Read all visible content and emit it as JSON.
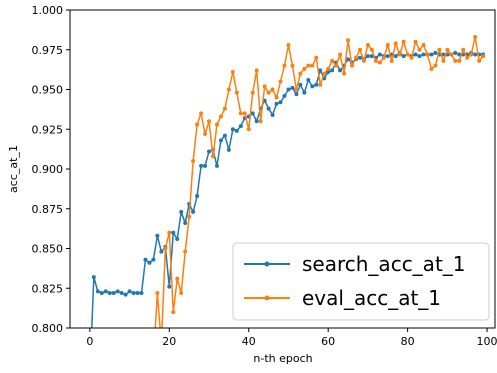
{
  "chart_data": {
    "type": "line",
    "xlabel": "n-th epoch",
    "ylabel": "acc_at_1",
    "xlim": [
      -5,
      102
    ],
    "ylim": [
      0.8,
      1.0
    ],
    "xticks": [
      "0",
      "20",
      "40",
      "60",
      "80",
      "100"
    ],
    "yticks": [
      "0.800",
      "0.825",
      "0.850",
      "0.875",
      "0.900",
      "0.925",
      "0.950",
      "0.975",
      "1.000"
    ],
    "grid": false,
    "legend_position": "lower-right",
    "series": [
      {
        "name": "search_acc_at_1",
        "color": "#1f77b4",
        "x": [
          0,
          1,
          2,
          3,
          4,
          5,
          6,
          7,
          8,
          9,
          10,
          11,
          12,
          13,
          14,
          15,
          16,
          17,
          18,
          19,
          20,
          21,
          22,
          23,
          24,
          25,
          26,
          27,
          28,
          29,
          30,
          31,
          32,
          33,
          34,
          35,
          36,
          37,
          38,
          39,
          40,
          41,
          42,
          43,
          44,
          45,
          46,
          47,
          48,
          49,
          50,
          51,
          52,
          53,
          54,
          55,
          56,
          57,
          58,
          59,
          60,
          61,
          62,
          63,
          64,
          65,
          66,
          67,
          68,
          69,
          70,
          71,
          72,
          73,
          74,
          75,
          76,
          77,
          78,
          79,
          80,
          81,
          82,
          83,
          84,
          85,
          86,
          87,
          88,
          89,
          90,
          91,
          92,
          93,
          94,
          95,
          96,
          97,
          98,
          99
        ],
        "y": [
          0.77,
          0.832,
          0.823,
          0.822,
          0.823,
          0.822,
          0.822,
          0.823,
          0.822,
          0.821,
          0.823,
          0.822,
          0.822,
          0.822,
          0.843,
          0.841,
          0.843,
          0.858,
          0.848,
          0.851,
          0.826,
          0.86,
          0.856,
          0.873,
          0.866,
          0.878,
          0.873,
          0.883,
          0.902,
          0.902,
          0.911,
          0.912,
          0.902,
          0.918,
          0.921,
          0.912,
          0.925,
          0.924,
          0.927,
          0.932,
          0.933,
          0.935,
          0.93,
          0.938,
          0.943,
          0.938,
          0.934,
          0.941,
          0.942,
          0.946,
          0.95,
          0.951,
          0.947,
          0.953,
          0.948,
          0.956,
          0.952,
          0.953,
          0.962,
          0.957,
          0.961,
          0.962,
          0.967,
          0.962,
          0.965,
          0.969,
          0.967,
          0.969,
          0.97,
          0.969,
          0.971,
          0.971,
          0.97,
          0.972,
          0.971,
          0.971,
          0.972,
          0.971,
          0.973,
          0.971,
          0.972,
          0.971,
          0.972,
          0.971,
          0.972,
          0.972,
          0.972,
          0.973,
          0.972,
          0.972,
          0.972,
          0.972,
          0.973,
          0.972,
          0.972,
          0.972,
          0.973,
          0.972,
          0.972,
          0.972
        ]
      },
      {
        "name": "eval_acc_at_1",
        "color": "#ff7f0e",
        "x": [
          16,
          17,
          18,
          19,
          20,
          21,
          22,
          23,
          24,
          25,
          26,
          27,
          28,
          29,
          30,
          31,
          32,
          33,
          34,
          35,
          36,
          37,
          38,
          39,
          40,
          41,
          42,
          43,
          44,
          45,
          46,
          47,
          48,
          49,
          50,
          51,
          52,
          53,
          54,
          55,
          56,
          57,
          58,
          59,
          60,
          61,
          62,
          63,
          64,
          65,
          66,
          67,
          68,
          69,
          70,
          71,
          72,
          73,
          74,
          75,
          76,
          77,
          78,
          79,
          80,
          81,
          82,
          83,
          84,
          85,
          86,
          87,
          88,
          89,
          90,
          91,
          92,
          93,
          94,
          95,
          96,
          97,
          98,
          99
        ],
        "y": [
          0.78,
          0.822,
          0.79,
          0.85,
          0.86,
          0.81,
          0.831,
          0.822,
          0.848,
          0.87,
          0.905,
          0.928,
          0.935,
          0.922,
          0.93,
          0.908,
          0.928,
          0.933,
          0.938,
          0.95,
          0.961,
          0.948,
          0.935,
          0.935,
          0.925,
          0.948,
          0.962,
          0.93,
          0.952,
          0.948,
          0.95,
          0.945,
          0.955,
          0.965,
          0.978,
          0.965,
          0.95,
          0.96,
          0.963,
          0.965,
          0.965,
          0.97,
          0.953,
          0.96,
          0.963,
          0.968,
          0.965,
          0.972,
          0.96,
          0.981,
          0.965,
          0.97,
          0.975,
          0.968,
          0.978,
          0.975,
          0.968,
          0.967,
          0.97,
          0.978,
          0.968,
          0.979,
          0.972,
          0.98,
          0.972,
          0.97,
          0.98,
          0.975,
          0.978,
          0.972,
          0.963,
          0.965,
          0.975,
          0.968,
          0.975,
          0.972,
          0.968,
          0.968,
          0.975,
          0.97,
          0.972,
          0.983,
          0.968,
          0.971
        ]
      }
    ]
  }
}
